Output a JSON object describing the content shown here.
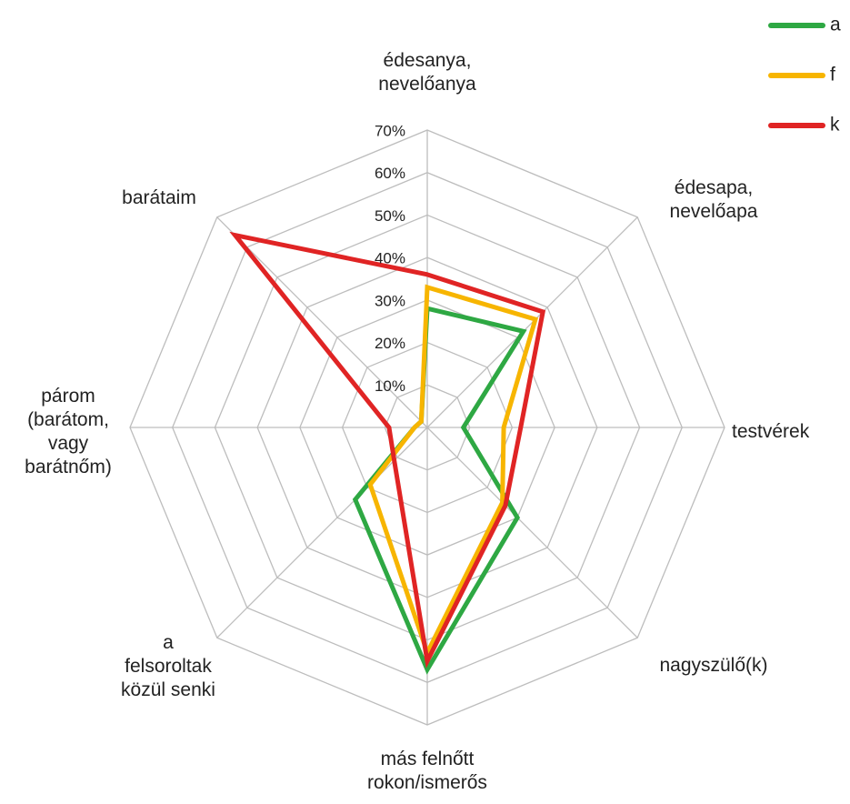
{
  "chart_data": {
    "type": "radar",
    "categories": [
      "édesanya,\nnevelőanya",
      "édesapa,\nnevelőapa",
      "testvérek",
      "nagyszülő(k)",
      "más felnőtt\nrokon/ismerős",
      "a\nfelsoroltak\nközül senki",
      "párom\n(barátom,\nvagy\nbarátnőm)",
      "barátaim"
    ],
    "series": [
      {
        "name": "a",
        "color": "#2ea843",
        "values": [
          28,
          32,
          8.5,
          30,
          57,
          24,
          3,
          2
        ]
      },
      {
        "name": "f",
        "color": "#f7b500",
        "values": [
          33,
          36,
          18,
          25,
          53,
          19,
          3,
          2
        ]
      },
      {
        "name": "k",
        "color": "#e02424",
        "values": [
          36,
          38.5,
          22,
          26,
          55,
          11,
          9,
          64
        ]
      }
    ],
    "ylim": [
      0,
      70
    ],
    "yticks": [
      {
        "value": 10,
        "label": "10%"
      },
      {
        "value": 20,
        "label": "20%"
      },
      {
        "value": 30,
        "label": "30%"
      },
      {
        "value": 40,
        "label": "40%"
      },
      {
        "value": 50,
        "label": "50%"
      },
      {
        "value": 60,
        "label": "60%"
      },
      {
        "value": 70,
        "label": "70%"
      }
    ],
    "grid": true
  }
}
